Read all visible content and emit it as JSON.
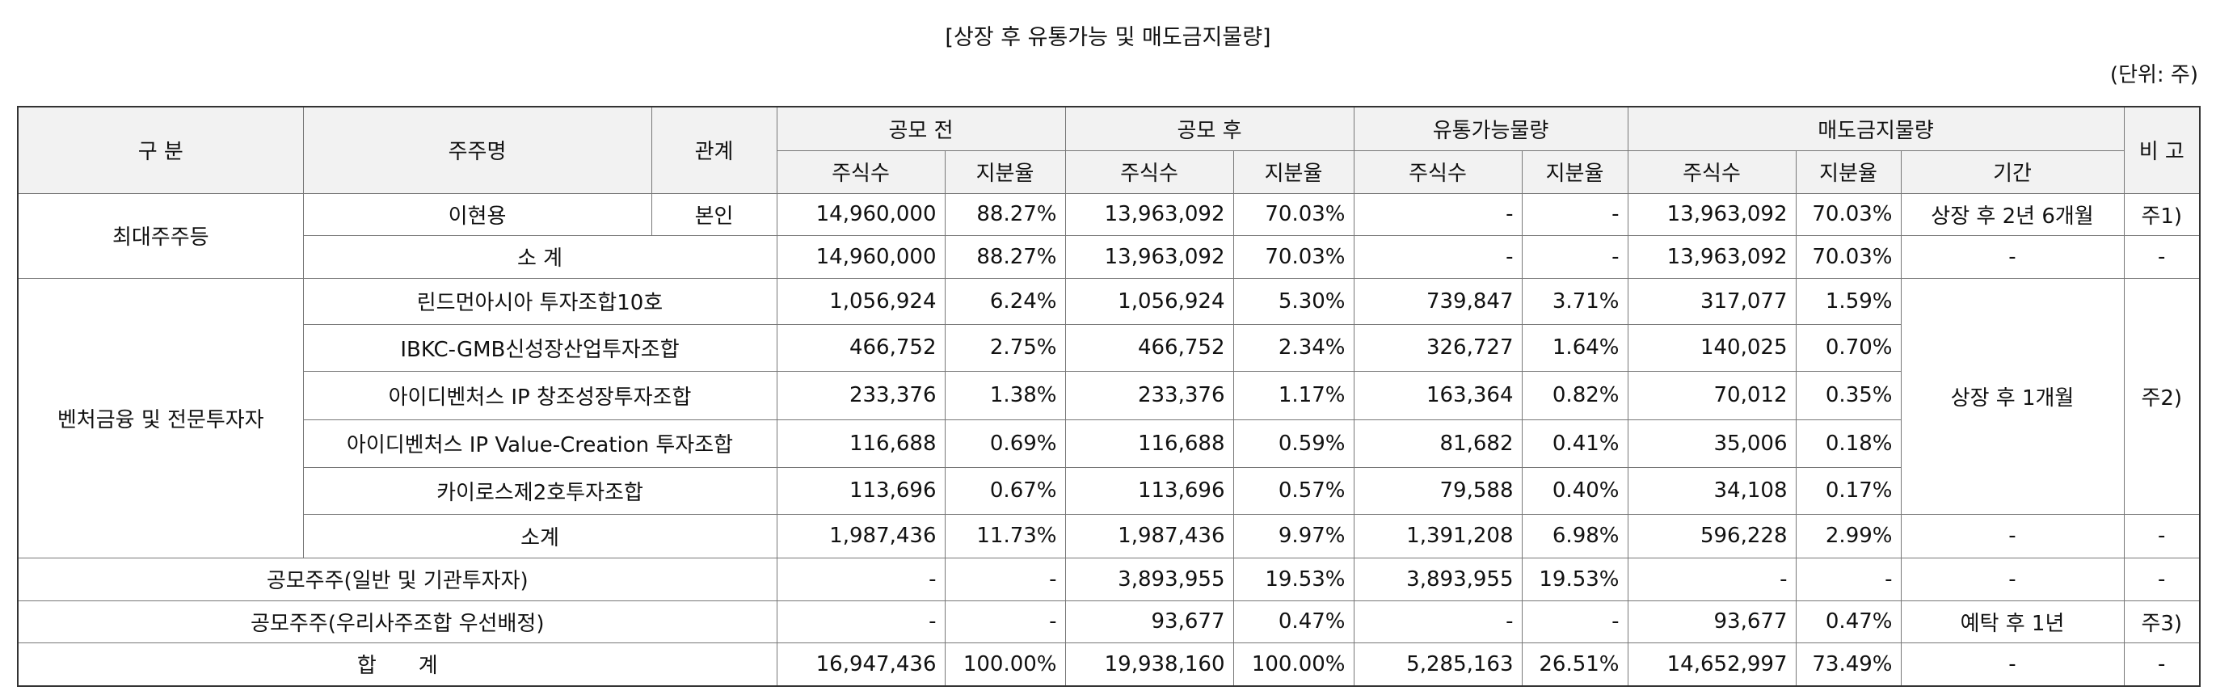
{
  "title": "[상장 후 유통가능 및 매도금지물량]",
  "unit": "(단위: 주)",
  "table": {
    "header": [
      [
        "구 분",
        "주주명",
        "관계",
        "공모 전",
        "공모 후",
        "유통가능물량",
        "매도금지물량",
        "비 고"
      ],
      [
        "주식수",
        "지분율",
        "주식수",
        "지분율",
        "주식수",
        "지분율",
        "주식수",
        "지분율",
        "기간"
      ]
    ],
    "rows": [
      [
        "최대주주등",
        "이현용",
        "본인",
        "14,960,000",
        "88.27%",
        "13,963,092",
        "70.03%",
        "-",
        "-",
        "13,963,092",
        "70.03%",
        "상장 후 2년 6개월",
        "주1)"
      ],
      [
        "소 계",
        "14,960,000",
        "88.27%",
        "13,963,092",
        "70.03%",
        "-",
        "-",
        "13,963,092",
        "70.03%",
        "-",
        "-"
      ],
      [
        "벤처금융 및 전문투자자",
        "린드먼아시아 투자조합10호",
        "1,056,924",
        "6.24%",
        "1,056,924",
        "5.30%",
        "739,847",
        "3.71%",
        "317,077",
        "1.59%",
        "상장 후 1개월",
        "주2)"
      ],
      [
        "IBKC-GMB신성장산업투자조합",
        "466,752",
        "2.75%",
        "466,752",
        "2.34%",
        "326,727",
        "1.64%",
        "140,025",
        "0.70%"
      ],
      [
        "아이디벤처스 IP 창조성장투자조합",
        "233,376",
        "1.38%",
        "233,376",
        "1.17%",
        "163,364",
        "0.82%",
        "70,012",
        "0.35%"
      ],
      [
        "아이디벤처스 IP Value-Creation 투자조합",
        "116,688",
        "0.69%",
        "116,688",
        "0.59%",
        "81,682",
        "0.41%",
        "35,006",
        "0.18%"
      ],
      [
        "카이로스제2호투자조합",
        "113,696",
        "0.67%",
        "113,696",
        "0.57%",
        "79,588",
        "0.40%",
        "34,108",
        "0.17%"
      ],
      [
        "소계",
        "1,987,436",
        "11.73%",
        "1,987,436",
        "9.97%",
        "1,391,208",
        "6.98%",
        "596,228",
        "2.99%",
        "-",
        "-"
      ],
      [
        "공모주주(일반 및 기관투자자)",
        "-",
        "-",
        "3,893,955",
        "19.53%",
        "3,893,955",
        "19.53%",
        "-",
        "-",
        "-",
        "-"
      ],
      [
        "공모주주(우리사주조합 우선배정)",
        "-",
        "-",
        "93,677",
        "0.47%",
        "-",
        "-",
        "93,677",
        "0.47%",
        "예탁 후 1년",
        "주3)"
      ],
      [
        "합　　계",
        "16,947,436",
        "100.00%",
        "19,938,160",
        "100.00%",
        "5,285,163",
        "26.51%",
        "14,652,997",
        "73.49%",
        "-",
        "-"
      ]
    ]
  }
}
